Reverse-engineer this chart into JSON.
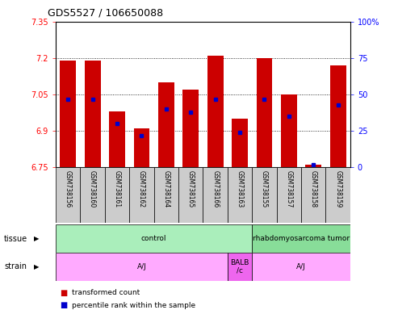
{
  "title": "GDS5527 / 106650088",
  "samples": [
    "GSM738156",
    "GSM738160",
    "GSM738161",
    "GSM738162",
    "GSM738164",
    "GSM738165",
    "GSM738166",
    "GSM738163",
    "GSM738155",
    "GSM738157",
    "GSM738158",
    "GSM738159"
  ],
  "bar_values": [
    7.19,
    7.19,
    6.98,
    6.91,
    7.1,
    7.07,
    7.21,
    6.95,
    7.2,
    7.05,
    6.76,
    7.17
  ],
  "percentile_values": [
    47,
    47,
    30,
    22,
    40,
    38,
    47,
    24,
    47,
    35,
    2,
    43
  ],
  "y_min": 6.75,
  "y_max": 7.35,
  "y_ticks": [
    6.75,
    6.9,
    7.05,
    7.2,
    7.35
  ],
  "y2_ticks": [
    0,
    25,
    50,
    75,
    100
  ],
  "bar_color": "#cc0000",
  "dot_color": "#0000cc",
  "tissue_groups": [
    {
      "label": "control",
      "start": 0,
      "end": 8,
      "color": "#aaeebb"
    },
    {
      "label": "rhabdomyosarcoma tumor",
      "start": 8,
      "end": 12,
      "color": "#88dd99"
    }
  ],
  "strain_rects": [
    {
      "label": "A/J",
      "start": 0,
      "end": 7,
      "color": "#ffaaff"
    },
    {
      "label": "BALB\n/c",
      "start": 7,
      "end": 8,
      "color": "#ee66ee"
    },
    {
      "label": "A/J",
      "start": 8,
      "end": 12,
      "color": "#ffaaff"
    }
  ],
  "tick_area_color": "#cccccc",
  "plot_bg": "#ffffff"
}
